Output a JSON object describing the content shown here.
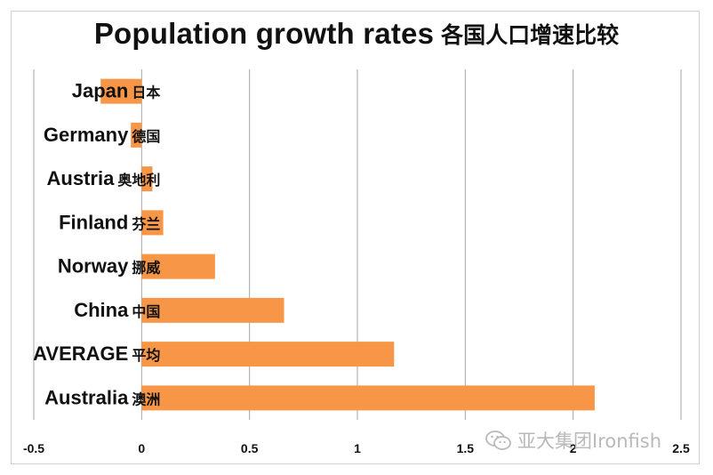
{
  "chart_data": {
    "type": "bar",
    "orientation": "horizontal",
    "title": "Population growth rates",
    "title_zh": "各国人口增速比较",
    "categories": [
      {
        "name": "Japan",
        "name_zh": "日本",
        "value": -0.19
      },
      {
        "name": "Germany",
        "name_zh": "德国",
        "value": -0.05
      },
      {
        "name": "Austria",
        "name_zh": "奥地利",
        "value": 0.05
      },
      {
        "name": "Finland",
        "name_zh": "芬兰",
        "value": 0.1
      },
      {
        "name": "Norway",
        "name_zh": "挪威",
        "value": 0.34
      },
      {
        "name": "China",
        "name_zh": "中国",
        "value": 0.66
      },
      {
        "name": "AVERAGE",
        "name_zh": "平均",
        "value": 1.17
      },
      {
        "name": "Australia",
        "name_zh": "澳洲",
        "value": 2.1
      }
    ],
    "xlim": [
      -0.5,
      2.5
    ],
    "xticks": [
      "-0.5",
      "0",
      "0.5",
      "1",
      "1.5",
      "2",
      "2.5"
    ],
    "grid": "vertical",
    "bar_color": "#F79646",
    "grid_color": "#a6a6a6"
  },
  "watermark": {
    "text": "亚大集团Ironfish",
    "icon": "wechat-icon"
  }
}
